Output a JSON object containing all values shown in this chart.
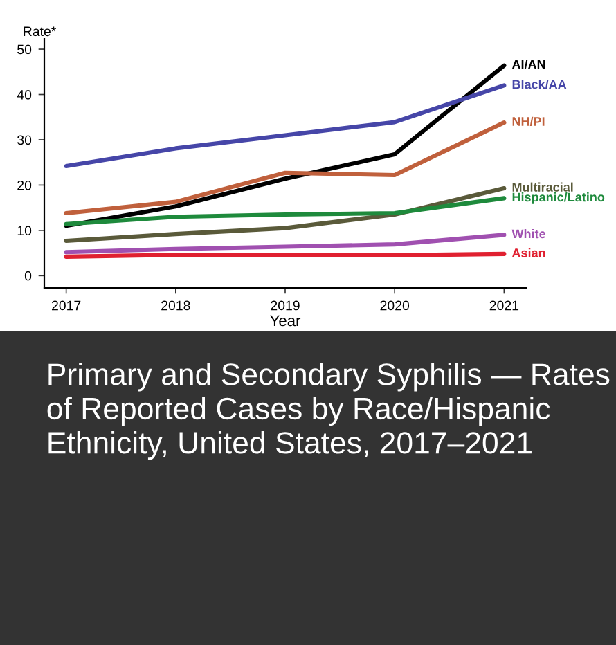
{
  "chart_data": {
    "type": "line",
    "title": "Primary and Secondary Syphilis — Rates of Reported Cases by Race/Hispanic Ethnicity, United States, 2017–2021",
    "xlabel": "Year",
    "ylabel": "Rate*",
    "x": [
      2017,
      2018,
      2019,
      2020,
      2021
    ],
    "xlim": [
      2016.8,
      2021.2
    ],
    "xticks": [
      2017,
      2018,
      2019,
      2020,
      2021
    ],
    "ylim": [
      -2.7,
      52.3
    ],
    "yticks": [
      0,
      10,
      20,
      30,
      40,
      50
    ],
    "grid": false,
    "legend": false,
    "marker": "none",
    "line_style": "solid",
    "series": [
      {
        "name": "AI/AN",
        "color": "#000000",
        "values": [
          11,
          15.3,
          21.4,
          26.8,
          46.4
        ]
      },
      {
        "name": "Black/AA",
        "color": "#4646a8",
        "values": [
          24.2,
          28.1,
          31,
          33.9,
          42
        ]
      },
      {
        "name": "NH/PI",
        "color": "#c0603c",
        "values": [
          13.8,
          16.3,
          22.7,
          22.2,
          33.8
        ]
      },
      {
        "name": "Multiracial",
        "color": "#5a5a3a",
        "values": [
          7.7,
          9.2,
          10.5,
          13.5,
          19.3
        ]
      },
      {
        "name": "Hispanic/Latino",
        "color": "#1e8a3c",
        "values": [
          11.4,
          13,
          13.5,
          13.8,
          17.1
        ]
      },
      {
        "name": "White",
        "color": "#a050b0",
        "values": [
          5.2,
          5.9,
          6.4,
          6.9,
          9
        ]
      },
      {
        "name": "Asian",
        "color": "#e02030",
        "values": [
          4.2,
          4.6,
          4.6,
          4.5,
          4.8
        ]
      }
    ]
  }
}
